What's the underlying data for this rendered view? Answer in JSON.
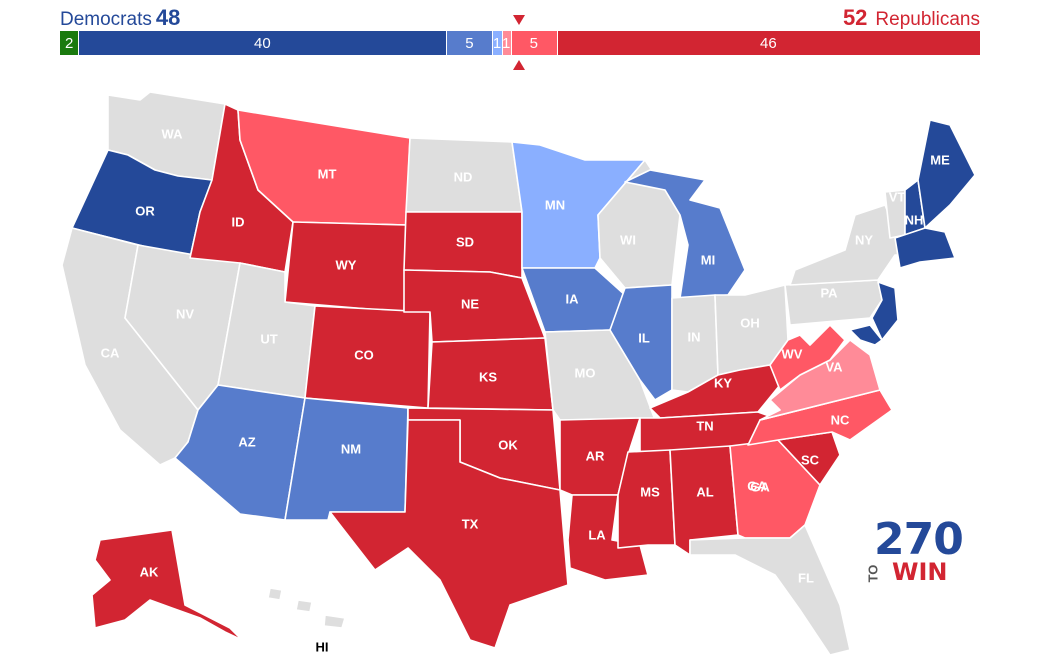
{
  "header": {
    "dem_label": "Democrats",
    "dem_total": "48",
    "rep_total": "52",
    "rep_label": "Republicans"
  },
  "bar": [
    {
      "value": 2,
      "label": "2",
      "color": "#1a7a0e"
    },
    {
      "value": 40,
      "label": "40",
      "color": "#244999"
    },
    {
      "value": 5,
      "label": "5",
      "color": "#577ccc"
    },
    {
      "value": 1,
      "label": "1",
      "color": "#8aafff"
    },
    {
      "value": 1,
      "label": "1",
      "color": "#ff8b98"
    },
    {
      "value": 5,
      "label": "5",
      "color": "#ff5865"
    },
    {
      "value": 46,
      "label": "46",
      "color": "#d22532"
    }
  ],
  "colors": {
    "safe_d": "#244999",
    "likely_d": "#577ccc",
    "lean_d": "#8aafff",
    "lean_r": "#ff8b98",
    "likely_r": "#ff5865",
    "safe_r": "#d22532",
    "no_race": "#dedede",
    "independent": "#1a7a0e"
  },
  "states": {
    "WA": "WA",
    "OR": "OR",
    "CA": "CA",
    "NV": "NV",
    "ID": "ID",
    "MT": "MT",
    "WY": "WY",
    "UT": "UT",
    "AZ": "AZ",
    "CO": "CO",
    "NM": "NM",
    "ND": "ND",
    "SD": "SD",
    "NE": "NE",
    "KS": "KS",
    "OK": "OK",
    "TX": "TX",
    "MN": "MN",
    "IA": "IA",
    "MO": "MO",
    "AR": "AR",
    "LA": "LA",
    "WI": "WI",
    "IL": "IL",
    "MI": "MI",
    "IN": "IN",
    "OH": "OH",
    "KY": "KY",
    "TN": "TN",
    "MS": "MS",
    "AL": "AL",
    "GA": "GA",
    "GA2": "GA",
    "FL": "FL",
    "SC": "SC",
    "NC": "NC",
    "VA": "VA",
    "WV": "WV",
    "PA": "PA",
    "NY": "NY",
    "VT": "VT",
    "NH": "NH",
    "ME": "ME",
    "AK": "AK",
    "HI": "HI"
  },
  "logo": {
    "number": "270",
    "to": "TO",
    "win": "WIN"
  }
}
